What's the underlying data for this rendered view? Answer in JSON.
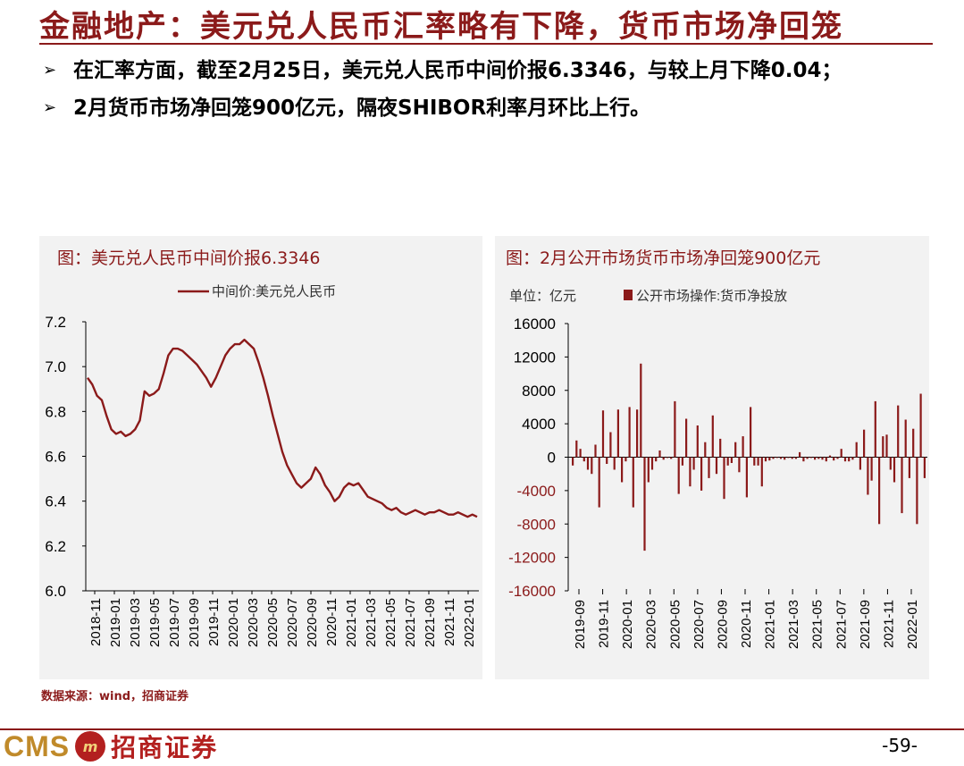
{
  "slide": {
    "title": "金融地产：美元兑人民币汇率略有下降，货币市场净回笼",
    "bullets": [
      "在汇率方面，截至2月25日，美元兑人民币中间价报6.3346，与较上月下降0.04；",
      "2月货币市场净回笼900亿元，隔夜SHIBOR利率月环比上行。"
    ],
    "bullet_marker": "➢",
    "source": "数据来源：wind，招商证券",
    "page_number": "-59-",
    "logo_text": "CMS",
    "logo_badge": "m",
    "logo_cn": "招商证券"
  },
  "colors": {
    "accent": "#8b1a1a",
    "bar": "#8b1a1a",
    "panel_bg": "#f2f2f2"
  },
  "chart_data": [
    {
      "type": "line",
      "title": "图：美元兑人民币中间价报6.3346",
      "xlabel": "",
      "ylabel": "",
      "ylim": [
        6.0,
        7.2
      ],
      "yticks": [
        "7.2",
        "7.0",
        "6.8",
        "6.6",
        "6.4",
        "6.2",
        "6.0"
      ],
      "xticks": [
        "2018-11",
        "2019-01",
        "2019-03",
        "2019-05",
        "2019-07",
        "2019-09",
        "2019-11",
        "2020-01",
        "2020-03",
        "2020-05",
        "2020-07",
        "2020-09",
        "2020-11",
        "2021-01",
        "2021-03",
        "2021-05",
        "2021-07",
        "2021-09",
        "2021-11",
        "2022-01"
      ],
      "grid": false,
      "legend": "top-center",
      "series": [
        {
          "name": "中间价:美元兑人民币",
          "x": [
            0,
            0.5,
            1,
            1.5,
            2,
            2.5,
            3,
            3.5,
            4,
            4.5,
            5,
            5.5,
            6,
            6.5,
            7,
            7.5,
            8,
            8.5,
            9,
            9.5,
            10,
            10.5,
            11,
            11.5,
            12,
            12.5,
            13,
            13.5,
            14,
            14.5,
            15,
            15.5,
            16,
            16.5,
            17,
            17.5,
            18,
            18.5,
            19,
            19.5,
            20,
            20.5,
            21,
            21.5,
            22,
            22.5,
            23,
            23.5,
            24,
            24.5,
            25,
            25.5,
            26,
            26.5,
            27,
            27.5,
            28,
            28.5,
            29,
            29.5,
            30,
            30.5,
            31,
            31.5,
            32,
            32.5,
            33,
            33.5,
            34,
            34.5,
            35,
            35.5,
            36,
            36.5,
            37,
            37.5,
            38,
            38.5,
            39,
            39.5,
            40,
            40.5,
            41
          ],
          "values": [
            6.95,
            6.92,
            6.87,
            6.85,
            6.78,
            6.72,
            6.7,
            6.71,
            6.69,
            6.7,
            6.72,
            6.76,
            6.89,
            6.87,
            6.88,
            6.9,
            6.97,
            7.05,
            7.08,
            7.08,
            7.07,
            7.05,
            7.03,
            7.01,
            6.98,
            6.95,
            6.91,
            6.95,
            7.0,
            7.05,
            7.08,
            7.1,
            7.1,
            7.12,
            7.1,
            7.08,
            7.02,
            6.95,
            6.87,
            6.78,
            6.7,
            6.62,
            6.56,
            6.52,
            6.48,
            6.46,
            6.48,
            6.5,
            6.55,
            6.52,
            6.47,
            6.44,
            6.4,
            6.42,
            6.46,
            6.48,
            6.47,
            6.48,
            6.45,
            6.42,
            6.41,
            6.4,
            6.39,
            6.37,
            6.36,
            6.37,
            6.35,
            6.34,
            6.35,
            6.36,
            6.35,
            6.34,
            6.35,
            6.35,
            6.36,
            6.35,
            6.34,
            6.34,
            6.35,
            6.34,
            6.33,
            6.34,
            6.33
          ]
        }
      ]
    },
    {
      "type": "bar",
      "title": "图：2月公开市场货币市场净回笼900亿元",
      "unit_label": "单位：亿元",
      "xlabel": "",
      "ylabel": "",
      "ylim": [
        -16000,
        16000
      ],
      "yticks": [
        "16000",
        "12000",
        "8000",
        "4000",
        "0",
        "-4000",
        "-8000",
        "-12000",
        "-16000"
      ],
      "xticks": [
        "2019-09",
        "2019-11",
        "2020-01",
        "2020-03",
        "2020-05",
        "2020-07",
        "2020-09",
        "2020-11",
        "2021-01",
        "2021-03",
        "2021-05",
        "2021-07",
        "2021-09",
        "2021-11",
        "2022-01"
      ],
      "grid": false,
      "legend": "top-left",
      "series": [
        {
          "name": "公开市场操作:货币净投放",
          "values": [
            -1000,
            2000,
            1000,
            -500,
            -1500,
            -2000,
            1500,
            -6000,
            5600,
            -800,
            3000,
            -1500,
            5700,
            -3000,
            -500,
            6000,
            -6000,
            5700,
            11200,
            -11200,
            -3000,
            -1500,
            -500,
            800,
            -300,
            -100,
            -200,
            6700,
            -4400,
            -1000,
            4600,
            -3500,
            -1500,
            3800,
            -4000,
            1800,
            -2500,
            5000,
            -2000,
            2200,
            -5000,
            -1000,
            -700,
            1800,
            -1800,
            2500,
            -4800,
            6000,
            -1000,
            -1000,
            -3500,
            -500,
            -400,
            -200,
            -100,
            -200,
            -300,
            -100,
            -200,
            -200,
            600,
            -500,
            -200,
            -100,
            -300,
            -200,
            -300,
            -500,
            200,
            -400,
            -200,
            1000,
            -500,
            -500,
            -300,
            1800,
            -1500,
            3300,
            -4500,
            -2800,
            6700,
            -8000,
            2500,
            2700,
            -1500,
            -3000,
            6200,
            -6700,
            4500,
            -2500,
            3400,
            -8000,
            7600,
            -2500
          ]
        }
      ]
    }
  ]
}
